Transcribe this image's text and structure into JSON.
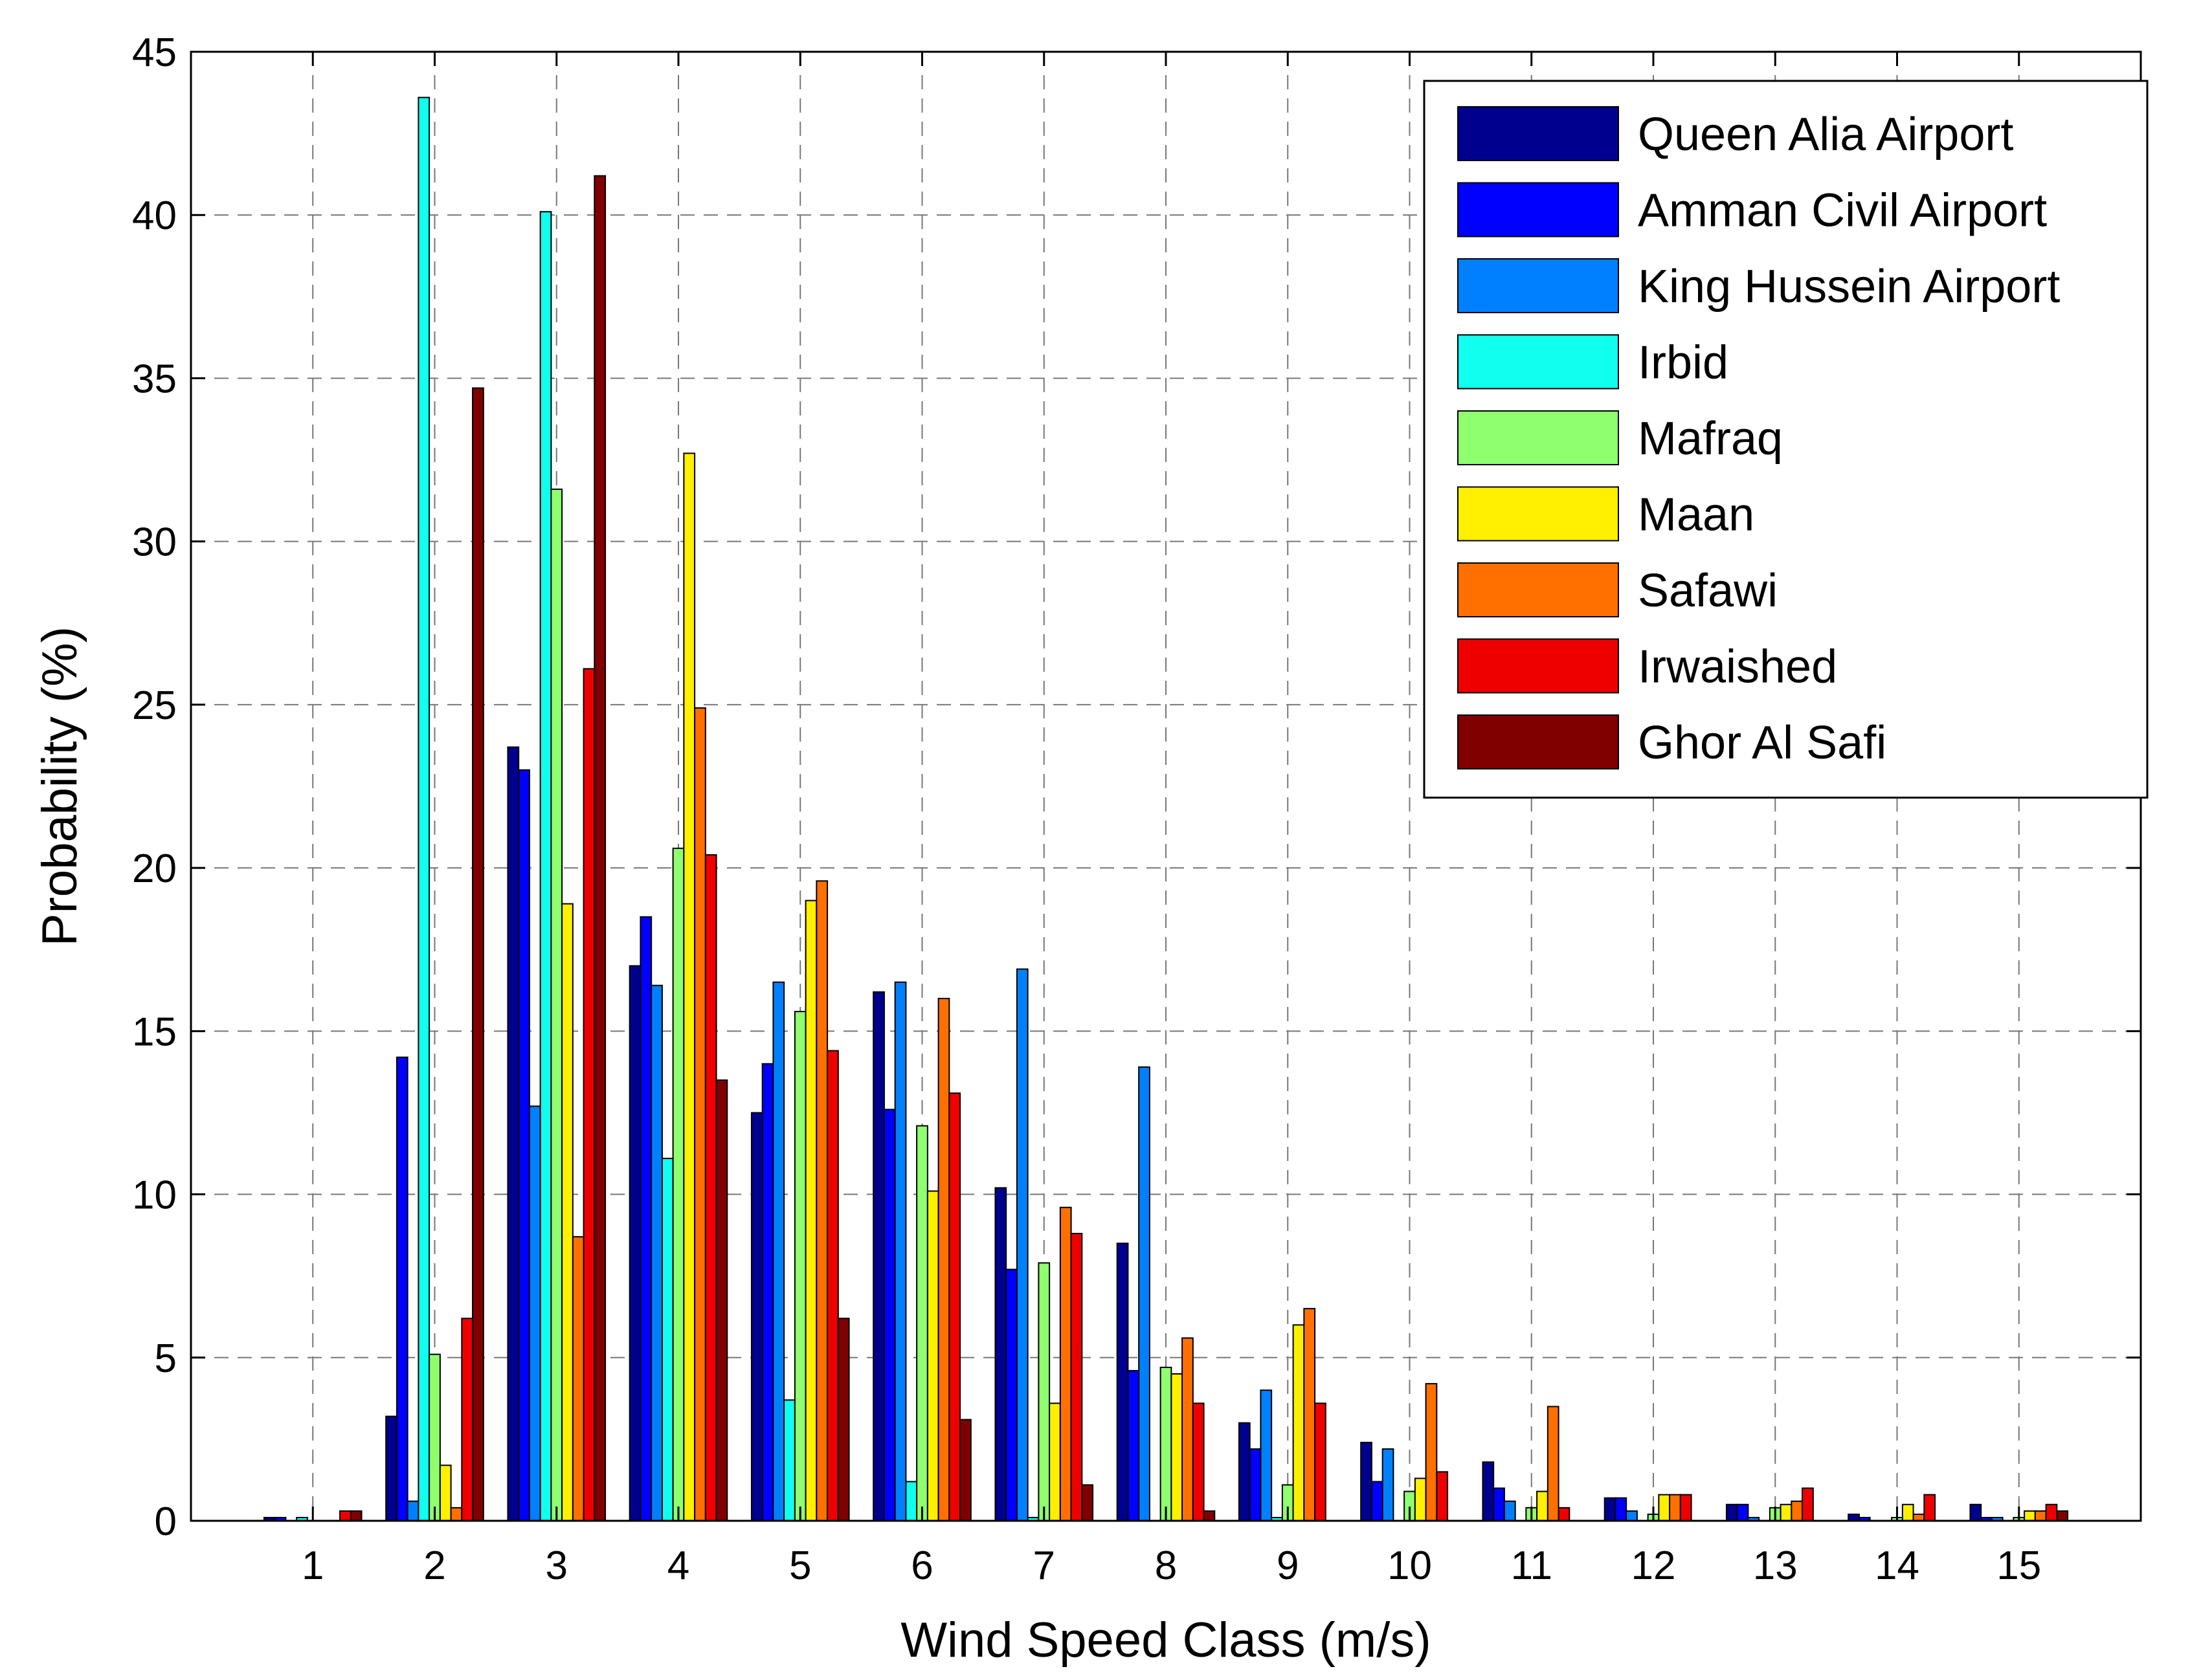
{
  "chart_data": {
    "type": "bar",
    "title": "",
    "xlabel": "Wind Speed Class (m/s)",
    "ylabel": "Probability (%)",
    "ylim": [
      0,
      45
    ],
    "yticks": [
      0,
      5,
      10,
      15,
      20,
      25,
      30,
      35,
      40,
      45
    ],
    "categories": [
      "1",
      "2",
      "3",
      "4",
      "5",
      "6",
      "7",
      "8",
      "9",
      "10",
      "11",
      "12",
      "13",
      "14",
      "15"
    ],
    "grid": true,
    "legend_position": "top-right",
    "series": [
      {
        "name": "Queen Alia Airport",
        "color": "#00008F",
        "values": [
          0.1,
          3.2,
          23.7,
          17.0,
          12.5,
          16.2,
          10.2,
          8.5,
          3.0,
          2.4,
          1.8,
          0.7,
          0.5,
          0.2,
          0.5
        ]
      },
      {
        "name": "Amman Civil Airport",
        "color": "#0000FF",
        "values": [
          0.1,
          14.2,
          23.0,
          18.5,
          14.0,
          12.6,
          7.7,
          4.6,
          2.2,
          1.2,
          1.0,
          0.7,
          0.5,
          0.1,
          0.1
        ]
      },
      {
        "name": "King Hussein Airport",
        "color": "#0080FF",
        "values": [
          0.0,
          0.6,
          12.7,
          16.4,
          16.5,
          16.5,
          16.9,
          13.9,
          4.0,
          2.2,
          0.6,
          0.3,
          0.1,
          0.0,
          0.1
        ]
      },
      {
        "name": "Irbid",
        "color": "#10FFEF",
        "values": [
          0.1,
          43.6,
          40.1,
          11.1,
          3.7,
          1.2,
          0.1,
          0.0,
          0.1,
          0.0,
          0.0,
          0.0,
          0.0,
          0.0,
          0.0
        ]
      },
      {
        "name": "Mafraq",
        "color": "#8FFF70",
        "values": [
          0.0,
          5.1,
          31.6,
          20.6,
          15.6,
          12.1,
          7.9,
          4.7,
          1.1,
          0.9,
          0.4,
          0.2,
          0.4,
          0.1,
          0.1
        ]
      },
      {
        "name": "Maan",
        "color": "#FFEF00",
        "values": [
          0.0,
          1.7,
          18.9,
          32.7,
          19.0,
          10.1,
          3.6,
          4.5,
          6.0,
          1.3,
          0.9,
          0.8,
          0.5,
          0.5,
          0.3
        ]
      },
      {
        "name": "Safawi",
        "color": "#FF7000",
        "values": [
          0.0,
          0.4,
          8.7,
          24.9,
          19.6,
          16.0,
          9.6,
          5.6,
          6.5,
          4.2,
          3.5,
          0.8,
          0.6,
          0.2,
          0.3
        ]
      },
      {
        "name": "Irwaished",
        "color": "#EF0000",
        "values": [
          0.3,
          6.2,
          26.1,
          20.4,
          14.4,
          13.1,
          8.8,
          3.6,
          3.6,
          1.5,
          0.4,
          0.8,
          1.0,
          0.8,
          0.5
        ]
      },
      {
        "name": "Ghor Al Safi",
        "color": "#800000",
        "values": [
          0.3,
          34.7,
          41.2,
          13.5,
          6.2,
          3.1,
          1.1,
          0.3,
          0.0,
          0.0,
          0.0,
          0.0,
          0.0,
          0.0,
          0.3
        ]
      }
    ]
  }
}
